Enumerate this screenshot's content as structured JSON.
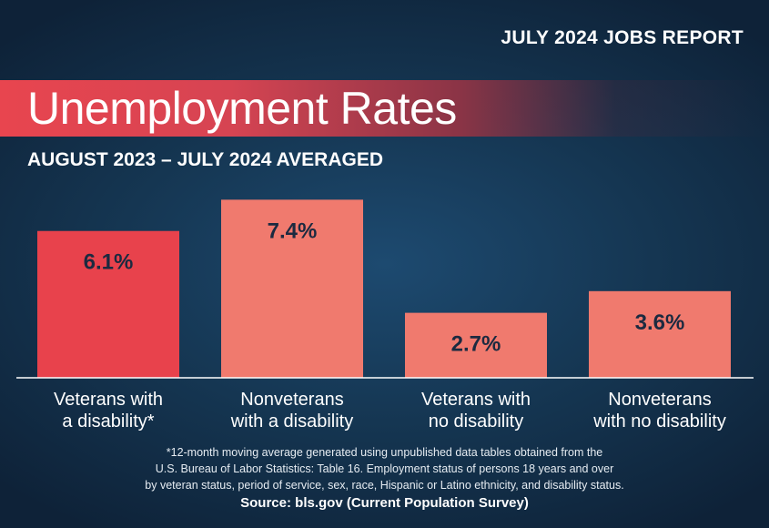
{
  "header": {
    "report_label": "JULY 2024 JOBS REPORT",
    "title": "Unemployment Rates",
    "subtitle": "AUGUST 2023 – JULY 2024 AVERAGED"
  },
  "chart_data": {
    "type": "bar",
    "title": "Unemployment Rates",
    "subtitle": "AUGUST 2023 – JULY 2024 AVERAGED",
    "categories": [
      [
        "Veterans with",
        "a disability*"
      ],
      [
        "Nonveterans",
        "with a disability"
      ],
      [
        "Veterans with",
        "no disability"
      ],
      [
        "Nonveterans",
        "with no disability"
      ]
    ],
    "values": [
      6.1,
      7.4,
      2.7,
      3.6
    ],
    "value_labels": [
      "6.1%",
      "7.4%",
      "2.7%",
      "3.6%"
    ],
    "ylim": [
      0,
      8
    ],
    "xlabel": "",
    "ylabel": "",
    "grid": false,
    "colors": [
      "#e8424c",
      "#f07a6e",
      "#f07a6e",
      "#f07a6e"
    ],
    "label_color": "#1b2a40"
  },
  "footnote": {
    "lines": [
      "*12-month moving average generated using unpublished data tables obtained from the",
      "U.S. Bureau of Labor Statistics: Table 16. Employment status of persons 18 years and over",
      "by veteran status, period of service, sex, race, Hispanic or Latino ethnicity, and disability status."
    ]
  },
  "source": "Source: bls.gov (Current Population Survey)"
}
